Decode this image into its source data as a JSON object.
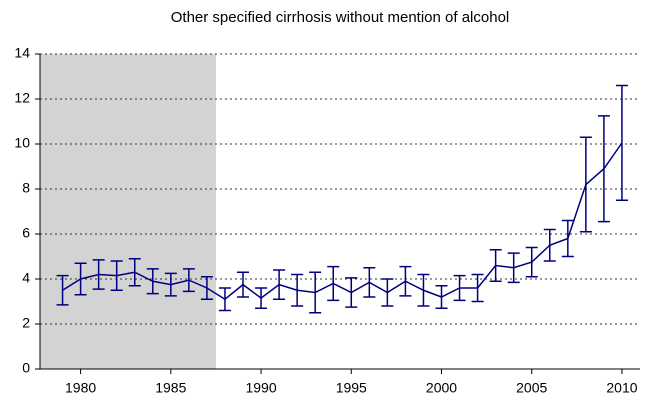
{
  "chart_data": {
    "type": "line",
    "title": "Other specified cirrhosis without mention of alcohol",
    "x": [
      1979,
      1980,
      1981,
      1982,
      1983,
      1984,
      1985,
      1986,
      1987,
      1988,
      1989,
      1990,
      1991,
      1992,
      1993,
      1994,
      1995,
      1996,
      1997,
      1998,
      1999,
      2000,
      2001,
      2002,
      2003,
      2004,
      2005,
      2006,
      2007,
      2008,
      2009,
      2010
    ],
    "values": [
      3.5,
      4.0,
      4.2,
      4.15,
      4.3,
      3.9,
      3.75,
      3.95,
      3.6,
      3.1,
      3.75,
      3.15,
      3.75,
      3.5,
      3.4,
      3.8,
      3.4,
      3.85,
      3.4,
      3.9,
      3.5,
      3.2,
      3.6,
      3.6,
      4.6,
      4.5,
      4.75,
      5.5,
      5.8,
      8.2,
      8.9,
      10.05
    ],
    "errors": [
      0.65,
      0.7,
      0.65,
      0.65,
      0.6,
      0.55,
      0.5,
      0.5,
      0.5,
      0.5,
      0.55,
      0.45,
      0.65,
      0.7,
      0.9,
      0.75,
      0.65,
      0.65,
      0.6,
      0.65,
      0.7,
      0.5,
      0.55,
      0.6,
      0.7,
      0.65,
      0.65,
      0.7,
      0.8,
      2.1,
      2.35,
      2.55
    ],
    "color": "#00007f",
    "shade": [
      1977.75,
      1987.5
    ],
    "shade_color": "#d3d3d3",
    "xlim": [
      1977.75,
      2011
    ],
    "xticks": [
      1980,
      1985,
      1990,
      1995,
      2000,
      2005,
      2010
    ],
    "ylim": [
      0,
      14
    ],
    "yticks": [
      0,
      2,
      4,
      6,
      8,
      10,
      12,
      14
    ],
    "grid": true
  }
}
